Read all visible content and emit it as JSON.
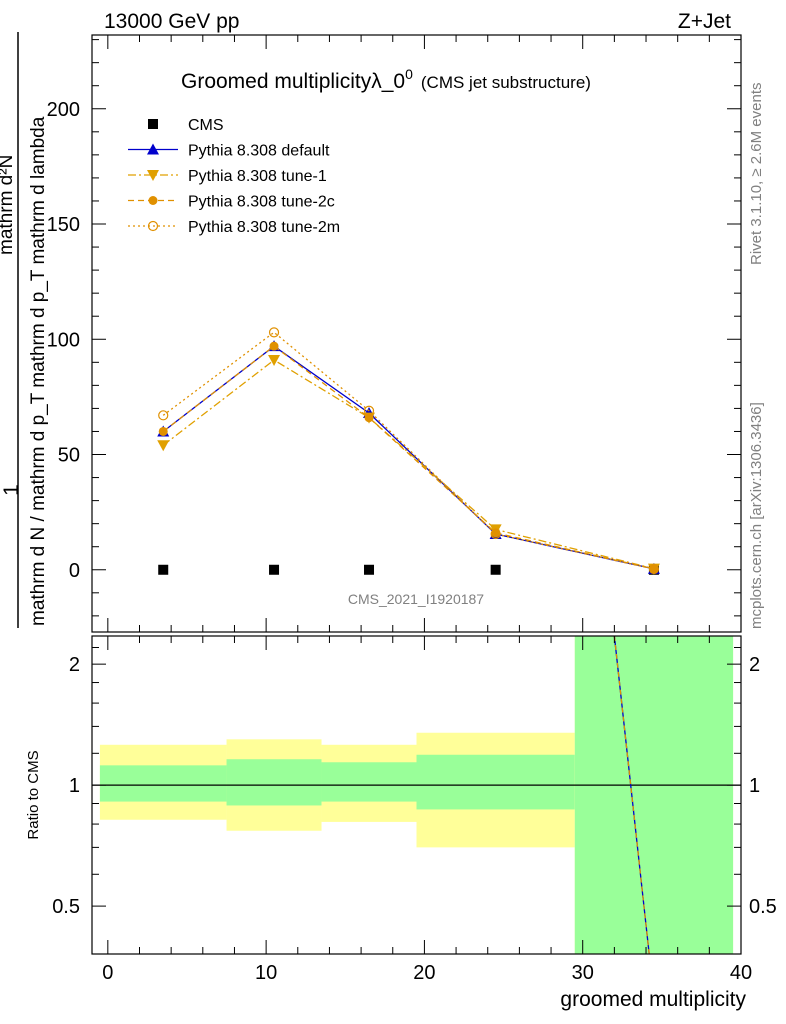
{
  "header": {
    "energy_label": "13000 GeV pp",
    "process_label": "Z+Jet"
  },
  "side_labels": {
    "rivet": "Rivet 3.1.10, ≥ 2.6M events",
    "mcplots": "mcplots.cern.ch [arXiv:1306.3436]"
  },
  "chart_data": [
    {
      "type": "line",
      "title": "Groomed multiplicityλ_0",
      "title_superscript": "0",
      "subtitle": "(CMS jet substructure)",
      "ylabel_numerator": "mathrm d²N",
      "ylabel_denominator": "mathrm d N / mathrm d p_T mathrm d p_T mathrm d lambda",
      "ylabel_prefix": "1",
      "ylim": [
        -27,
        232
      ],
      "yticks": [
        0,
        50,
        100,
        150,
        200
      ],
      "xlim": [
        -1,
        40
      ],
      "xticks": [
        0,
        10,
        20,
        30,
        40
      ],
      "watermark": "CMS_2021_I1920187",
      "legend_position": "top-left",
      "series": [
        {
          "name": "CMS",
          "color": "#000000",
          "marker": "square",
          "line": "none",
          "x": [
            3.5,
            10.5,
            16.5,
            24.5,
            34.5
          ],
          "y": [
            0,
            0,
            0,
            0,
            0
          ]
        },
        {
          "name": "Pythia 8.308 default",
          "color": "#0000cc",
          "marker": "triangle-up",
          "line": "solid",
          "x": [
            3.5,
            10.5,
            16.5,
            24.5,
            34.5
          ],
          "y": [
            60,
            97,
            68,
            15.5,
            0.4
          ]
        },
        {
          "name": "Pythia 8.308 tune-1",
          "color": "#e0a000",
          "marker": "triangle-down",
          "line": "dashdot",
          "x": [
            3.5,
            10.5,
            16.5,
            24.5,
            34.5
          ],
          "y": [
            54,
            91,
            66,
            17.5,
            0.5
          ]
        },
        {
          "name": "Pythia 8.308 tune-2c",
          "color": "#e09000",
          "marker": "circle",
          "line": "dashed",
          "x": [
            3.5,
            10.5,
            16.5,
            24.5,
            34.5
          ],
          "y": [
            60,
            97,
            66,
            16,
            0.4
          ]
        },
        {
          "name": "Pythia 8.308 tune-2m",
          "color": "#e09000",
          "marker": "circle-open",
          "line": "dotted",
          "x": [
            3.5,
            10.5,
            16.5,
            24.5,
            34.5
          ],
          "y": [
            67,
            103,
            69,
            15.5,
            0.3
          ]
        }
      ]
    },
    {
      "type": "area",
      "ylabel": "Ratio to CMS",
      "xlabel": "groomed multiplicity",
      "ylim": [
        0.38,
        2.35
      ],
      "yticks": [
        0.5,
        1,
        2
      ],
      "ytick_labels": [
        "0.5",
        "1",
        "2"
      ],
      "xlim": [
        -1,
        40
      ],
      "xticks": [
        0,
        10,
        20,
        30,
        40
      ],
      "bins": [
        {
          "x0": -0.5,
          "x1": 7.5,
          "yellow": [
            0.82,
            1.26
          ],
          "green": [
            0.91,
            1.12
          ]
        },
        {
          "x0": 7.5,
          "x1": 13.5,
          "yellow": [
            0.77,
            1.3
          ],
          "green": [
            0.89,
            1.16
          ]
        },
        {
          "x0": 13.5,
          "x1": 19.5,
          "yellow": [
            0.81,
            1.26
          ],
          "green": [
            0.91,
            1.14
          ]
        },
        {
          "x0": 19.5,
          "x1": 29.5,
          "yellow": [
            0.7,
            1.35
          ],
          "green": [
            0.87,
            1.19
          ]
        },
        {
          "x0": 29.5,
          "x1": 39.5,
          "yellow": [
            0.38,
            2.35
          ],
          "green": [
            0.38,
            2.35
          ]
        }
      ],
      "reference_line": 1,
      "ratio_line": {
        "x": [
          32,
          34.2
        ],
        "y": [
          2.35,
          0.38
        ]
      }
    }
  ],
  "colors": {
    "band_yellow": "#ffff99",
    "band_green": "#99ff99",
    "grey_text": "#808080"
  }
}
